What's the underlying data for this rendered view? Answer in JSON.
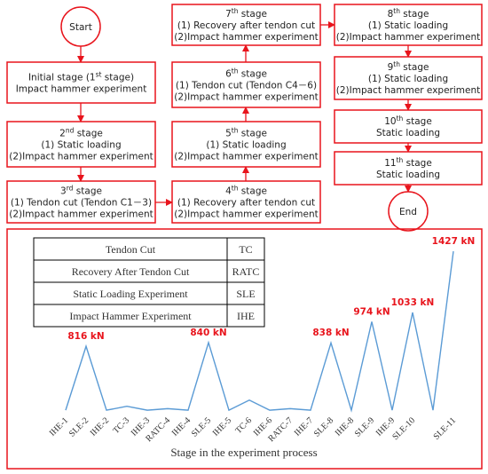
{
  "flowchart": {
    "nodes": [
      {
        "shape": "circle",
        "lines": [
          [
            "Start"
          ]
        ]
      },
      {
        "shape": "box",
        "lines": [
          [
            "Initial stage (1",
            "st",
            " stage)"
          ],
          [
            "Impact hammer experiment"
          ]
        ]
      },
      {
        "shape": "box",
        "lines": [
          [
            "2",
            "nd",
            " stage"
          ],
          [
            "(1) Static loading"
          ],
          [
            "(2)Impact hammer experiment"
          ]
        ]
      },
      {
        "shape": "box",
        "lines": [
          [
            "3",
            "rd",
            " stage"
          ],
          [
            "(1) Tendon cut (Tendon C1－3)"
          ],
          [
            "(2)Impact hammer experiment"
          ]
        ]
      },
      {
        "shape": "box",
        "lines": [
          [
            "4",
            "th",
            " stage"
          ],
          [
            "(1) Recovery after tendon cut"
          ],
          [
            "(2)Impact hammer experiment"
          ]
        ]
      },
      {
        "shape": "box",
        "lines": [
          [
            "5",
            "th",
            " stage"
          ],
          [
            "(1) Static loading"
          ],
          [
            "(2)Impact hammer experiment"
          ]
        ]
      },
      {
        "shape": "box",
        "lines": [
          [
            "6",
            "th",
            " stage"
          ],
          [
            "(1) Tendon cut (Tendon C4－6)"
          ],
          [
            "(2)Impact hammer experiment"
          ]
        ]
      },
      {
        "shape": "box",
        "lines": [
          [
            "7",
            "th",
            " stage"
          ],
          [
            "(1) Recovery after tendon cut"
          ],
          [
            "(2)Impact hammer experiment"
          ]
        ]
      },
      {
        "shape": "box",
        "lines": [
          [
            "8",
            "th",
            " stage"
          ],
          [
            "(1) Static loading"
          ],
          [
            "(2)Impact hammer experiment"
          ]
        ]
      },
      {
        "shape": "box",
        "lines": [
          [
            "9",
            "th",
            " stage"
          ],
          [
            "(1) Static loading"
          ],
          [
            "(2)Impact hammer experiment"
          ]
        ]
      },
      {
        "shape": "box",
        "lines": [
          [
            "10",
            "th",
            " stage"
          ],
          [
            "Static loading"
          ]
        ]
      },
      {
        "shape": "box",
        "lines": [
          [
            "11",
            "th",
            " stage"
          ],
          [
            "Static loading"
          ]
        ]
      },
      {
        "shape": "circle",
        "lines": [
          [
            "End"
          ]
        ]
      }
    ]
  },
  "legend_table": {
    "rows": [
      [
        "Tendon Cut",
        "TC"
      ],
      [
        "Recovery After Tendon Cut",
        "RATC"
      ],
      [
        "Static Loading Experiment",
        "SLE"
      ],
      [
        "Impact Hammer Experiment",
        "IHE"
      ]
    ]
  },
  "chart_data": {
    "type": "line",
    "x_label": "Stage in the experiment process",
    "categories": [
      "IHE-1",
      "SLE-2",
      "IHE-2",
      "TC-3",
      "IHE-3",
      "RATC-4",
      "IHE-4",
      "SLE-5",
      "IHE-5",
      "TC-6",
      "IHE-6",
      "RATC-7",
      "IHE-7",
      "SLE-8",
      "IHE-8",
      "SLE-9",
      "IHE-9",
      "SLE-10",
      null,
      "SLE-11"
    ],
    "values": [
      405,
      816,
      405,
      430,
      405,
      415,
      405,
      840,
      405,
      470,
      405,
      415,
      405,
      838,
      405,
      974,
      405,
      1033,
      405,
      1427
    ],
    "value_labels": [
      null,
      "816 kN",
      null,
      null,
      null,
      null,
      null,
      "840 kN",
      null,
      null,
      null,
      null,
      null,
      "838 kN",
      null,
      "974 kN",
      null,
      "1033 kN",
      null,
      "1427 kN"
    ],
    "color": "#5b9bd5",
    "label_color": "#e8141c",
    "ylim": [
      400,
      1450
    ]
  }
}
